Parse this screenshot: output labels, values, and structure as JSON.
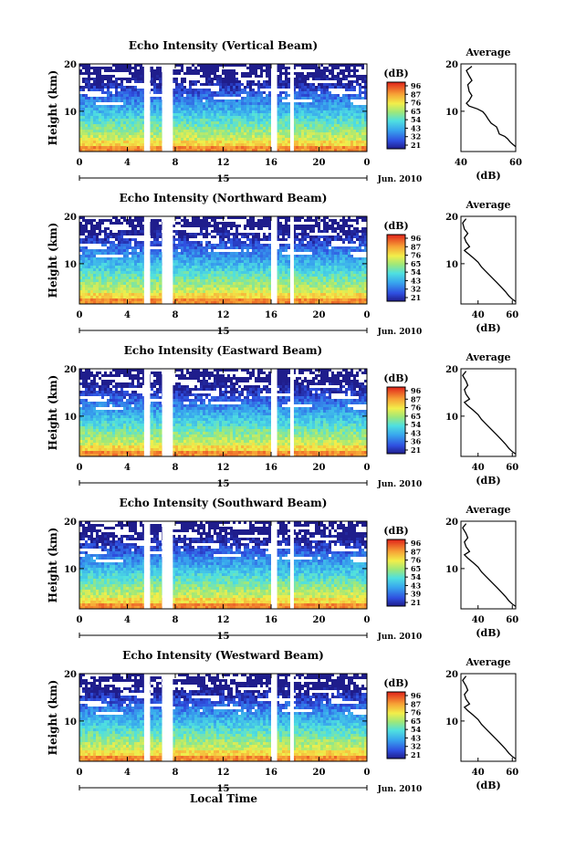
{
  "figure": {
    "xaxis_label": "Local Time",
    "date_label": "Jun. 2010",
    "day_label": "15",
    "avg_title": "Average",
    "avg_xlabel": "(dB)",
    "colorbar_unit": "(dB)"
  },
  "chart_data": [
    {
      "type": "heatmap",
      "title": "Echo Intensity (Vertical Beam)",
      "ylabel": "Height (km)",
      "xlabel": "Local Time",
      "xticks": [
        "0",
        "4",
        "8",
        "12",
        "16",
        "20",
        "0"
      ],
      "yticks": [
        "10",
        "20"
      ],
      "xlim": [
        0,
        24
      ],
      "ylim": [
        1.5,
        20
      ],
      "colorbar": {
        "label": "(dB)",
        "ticks": [
          "96",
          "87",
          "76",
          "65",
          "54",
          "43",
          "32",
          "21"
        ]
      },
      "data_gaps_hours": [
        [
          5.4,
          5.9
        ],
        [
          6.9,
          7.8
        ],
        [
          16.0,
          16.5
        ],
        [
          17.6,
          17.9
        ]
      ],
      "average_profile": {
        "title": "Average",
        "xlabel": "(dB)",
        "xticks": [
          "40",
          "60"
        ],
        "xlim": [
          40,
          60
        ],
        "yticks": [
          "10",
          "20"
        ],
        "points": [
          [
            44,
            19.5
          ],
          [
            42,
            18.6
          ],
          [
            43,
            17.5
          ],
          [
            44,
            16.5
          ],
          [
            42.5,
            15.6
          ],
          [
            43,
            14.2
          ],
          [
            44,
            13.3
          ],
          [
            43,
            12.3
          ],
          [
            42,
            11.7
          ],
          [
            43,
            11.1
          ],
          [
            46,
            10.5
          ],
          [
            48,
            9.9
          ],
          [
            49,
            9.2
          ],
          [
            50,
            8.3
          ],
          [
            51,
            7.5
          ],
          [
            53,
            6.7
          ],
          [
            53.5,
            6.0
          ],
          [
            54,
            5.2
          ],
          [
            56,
            4.7
          ],
          [
            57,
            4.2
          ],
          [
            58,
            3.5
          ],
          [
            59,
            3.0
          ],
          [
            60,
            2.5
          ]
        ]
      }
    },
    {
      "type": "heatmap",
      "title": "Echo Intensity (Northward Beam)",
      "ylabel": "Height (km)",
      "xlabel": "Local Time",
      "xticks": [
        "0",
        "4",
        "8",
        "12",
        "16",
        "20",
        "0"
      ],
      "yticks": [
        "10",
        "20"
      ],
      "xlim": [
        0,
        24
      ],
      "ylim": [
        1.5,
        20
      ],
      "colorbar": {
        "label": "(dB)",
        "ticks": [
          "96",
          "87",
          "76",
          "65",
          "54",
          "43",
          "32",
          "21"
        ]
      },
      "data_gaps_hours": [
        [
          5.4,
          5.9
        ],
        [
          6.9,
          7.8
        ],
        [
          16.0,
          16.5
        ],
        [
          17.6,
          17.9
        ]
      ],
      "average_profile": {
        "title": "Average",
        "xlabel": "(dB)",
        "xticks": [
          "40",
          "60"
        ],
        "xlim": [
          30,
          62
        ],
        "yticks": [
          "10",
          "20"
        ],
        "points": [
          [
            33,
            19.5
          ],
          [
            31,
            18.6
          ],
          [
            32,
            17.3
          ],
          [
            34,
            16.4
          ],
          [
            32,
            15.5
          ],
          [
            33,
            14.6
          ],
          [
            35,
            13.6
          ],
          [
            32,
            12.8
          ],
          [
            34,
            12.2
          ],
          [
            37,
            11.3
          ],
          [
            40,
            10.3
          ],
          [
            42,
            9.3
          ],
          [
            45,
            8.2
          ],
          [
            48,
            7.1
          ],
          [
            51,
            6.0
          ],
          [
            54,
            4.9
          ],
          [
            56,
            4.1
          ],
          [
            58,
            3.2
          ],
          [
            60,
            2.5
          ],
          [
            62,
            2.0
          ]
        ]
      }
    },
    {
      "type": "heatmap",
      "title": "Echo Intensity (Eastward Beam)",
      "ylabel": "Height (km)",
      "xlabel": "Local Time",
      "xticks": [
        "0",
        "4",
        "8",
        "12",
        "16",
        "20",
        "0"
      ],
      "yticks": [
        "10",
        "20"
      ],
      "xlim": [
        0,
        24
      ],
      "ylim": [
        1.5,
        20
      ],
      "colorbar": {
        "label": "(dB)",
        "ticks": [
          "96",
          "87",
          "76",
          "65",
          "54",
          "43",
          "36",
          "21"
        ]
      },
      "data_gaps_hours": [
        [
          5.4,
          5.9
        ],
        [
          6.9,
          7.8
        ],
        [
          16.0,
          16.5
        ],
        [
          17.6,
          17.9
        ]
      ],
      "average_profile": {
        "title": "Average",
        "xlabel": "(dB)",
        "xticks": [
          "40",
          "60"
        ],
        "xlim": [
          30,
          62
        ],
        "yticks": [
          "10",
          "20"
        ],
        "points": [
          [
            33,
            19.5
          ],
          [
            31,
            18.6
          ],
          [
            33,
            17.4
          ],
          [
            34,
            16.5
          ],
          [
            32,
            15.6
          ],
          [
            33,
            14.6
          ],
          [
            35,
            13.6
          ],
          [
            32,
            12.9
          ],
          [
            34,
            12.2
          ],
          [
            37,
            11.3
          ],
          [
            40,
            10.3
          ],
          [
            42,
            9.3
          ],
          [
            45,
            8.2
          ],
          [
            48,
            7.1
          ],
          [
            51,
            6.0
          ],
          [
            54,
            4.9
          ],
          [
            56,
            4.1
          ],
          [
            58,
            3.2
          ],
          [
            60,
            2.5
          ],
          [
            62,
            2.0
          ]
        ]
      }
    },
    {
      "type": "heatmap",
      "title": "Echo Intensity (Southward Beam)",
      "ylabel": "Height (km)",
      "xlabel": "Local Time",
      "xticks": [
        "0",
        "4",
        "8",
        "12",
        "16",
        "20",
        "0"
      ],
      "yticks": [
        "10",
        "20"
      ],
      "xlim": [
        0,
        24
      ],
      "ylim": [
        1.5,
        20
      ],
      "colorbar": {
        "label": "(dB)",
        "ticks": [
          "96",
          "87",
          "76",
          "65",
          "54",
          "43",
          "39",
          "21"
        ]
      },
      "data_gaps_hours": [
        [
          5.4,
          5.9
        ],
        [
          6.9,
          7.8
        ],
        [
          16.0,
          16.5
        ],
        [
          17.6,
          17.9
        ]
      ],
      "average_profile": {
        "title": "Average",
        "xlabel": "(dB)",
        "xticks": [
          "40",
          "60"
        ],
        "xlim": [
          30,
          62
        ],
        "yticks": [
          "10",
          "20"
        ],
        "points": [
          [
            33,
            19.5
          ],
          [
            31,
            18.6
          ],
          [
            33,
            17.4
          ],
          [
            34,
            16.5
          ],
          [
            32,
            15.6
          ],
          [
            33,
            14.6
          ],
          [
            35,
            13.6
          ],
          [
            32,
            12.9
          ],
          [
            34,
            12.2
          ],
          [
            37,
            11.3
          ],
          [
            40,
            10.3
          ],
          [
            42,
            9.3
          ],
          [
            45,
            8.2
          ],
          [
            48,
            7.1
          ],
          [
            51,
            6.0
          ],
          [
            54,
            4.9
          ],
          [
            56,
            4.1
          ],
          [
            58,
            3.2
          ],
          [
            60,
            2.5
          ],
          [
            62,
            2.0
          ]
        ]
      }
    },
    {
      "type": "heatmap",
      "title": "Echo Intensity (Westward Beam)",
      "ylabel": "Height (km)",
      "xlabel": "Local Time",
      "xticks": [
        "0",
        "4",
        "8",
        "12",
        "16",
        "20",
        "0"
      ],
      "yticks": [
        "10",
        "20"
      ],
      "xlim": [
        0,
        24
      ],
      "ylim": [
        1.5,
        20
      ],
      "colorbar": {
        "label": "(dB)",
        "ticks": [
          "96",
          "87",
          "76",
          "65",
          "54",
          "43",
          "32",
          "21"
        ]
      },
      "data_gaps_hours": [
        [
          5.4,
          5.9
        ],
        [
          6.9,
          7.8
        ],
        [
          16.0,
          16.5
        ],
        [
          17.6,
          17.9
        ]
      ],
      "average_profile": {
        "title": "Average",
        "xlabel": "(dB)",
        "xticks": [
          "40",
          "60"
        ],
        "xlim": [
          30,
          62
        ],
        "yticks": [
          "10",
          "20"
        ],
        "points": [
          [
            33,
            19.5
          ],
          [
            31,
            18.6
          ],
          [
            33,
            17.4
          ],
          [
            34,
            16.5
          ],
          [
            32,
            15.6
          ],
          [
            33,
            14.6
          ],
          [
            35,
            13.6
          ],
          [
            32,
            12.9
          ],
          [
            34,
            12.2
          ],
          [
            37,
            11.3
          ],
          [
            40,
            10.3
          ],
          [
            42,
            9.3
          ],
          [
            45,
            8.2
          ],
          [
            48,
            7.1
          ],
          [
            51,
            6.0
          ],
          [
            54,
            4.9
          ],
          [
            56,
            4.1
          ],
          [
            58,
            3.2
          ],
          [
            60,
            2.5
          ],
          [
            62,
            2.0
          ]
        ]
      }
    }
  ]
}
